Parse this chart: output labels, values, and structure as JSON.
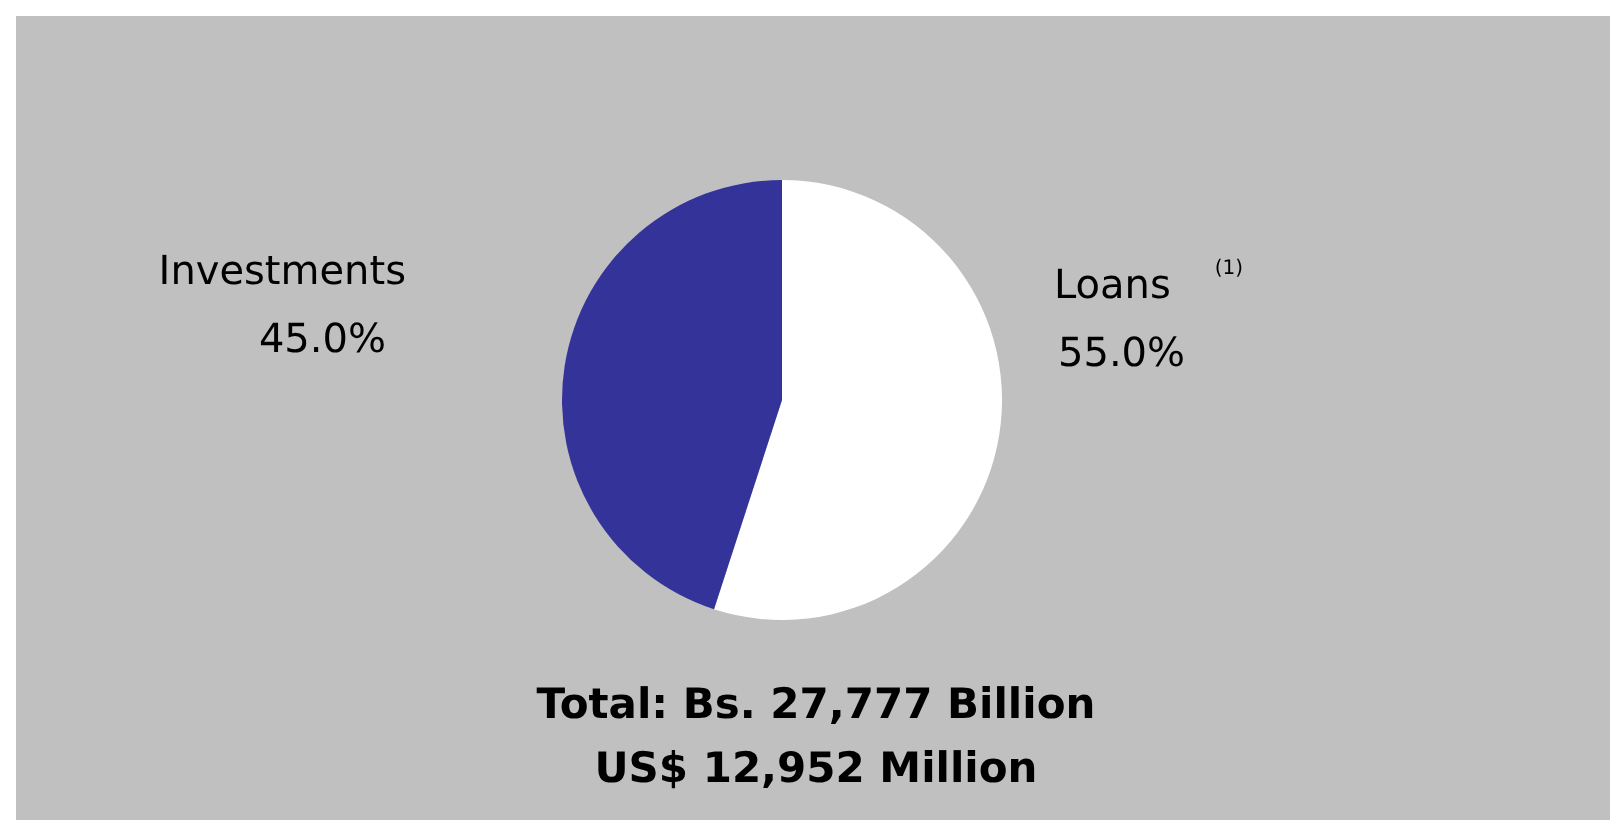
{
  "chart_data": {
    "type": "pie",
    "categories": [
      "Loans$^{(1)}$",
      "Investments"
    ],
    "values": [
      55.0,
      45.0
    ],
    "colors": [
      "#ffffff",
      "#333399"
    ],
    "value_labels": [
      "55.0%",
      "45.0%"
    ],
    "annotations": [
      "Total: Bs. 27,777 Billion",
      "US$ 12,952 Million"
    ],
    "legend": false
  }
}
